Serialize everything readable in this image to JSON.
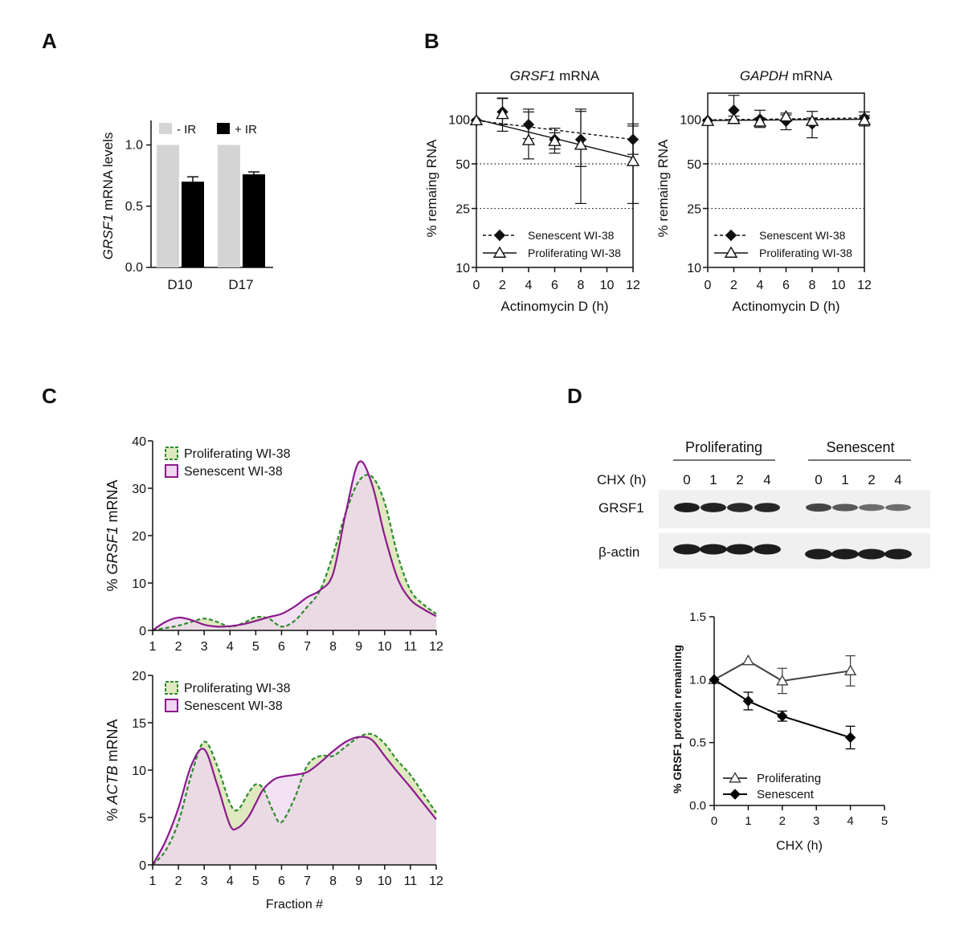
{
  "panels": {
    "A": {
      "letter": "A"
    },
    "B": {
      "letter": "B"
    },
    "C": {
      "letter": "C"
    },
    "D": {
      "letter": "D"
    }
  },
  "chart_data": [
    {
      "id": "A",
      "type": "bar",
      "title": "",
      "ylabel_italic": "GRSF1",
      "ylabel_rest": " mRNA levels",
      "categories": [
        "D10",
        "D17"
      ],
      "ylim": [
        0,
        1.2
      ],
      "yticks": [
        0.0,
        0.5,
        1.0
      ],
      "ytick_labels": [
        "0.0",
        "0.5",
        "1.0"
      ],
      "series": [
        {
          "name": "- IR",
          "color": "#d4d4d4",
          "values": [
            1.0,
            1.0
          ],
          "errors": [
            0,
            0
          ]
        },
        {
          "name": "+ IR",
          "color": "#000000",
          "values": [
            0.7,
            0.76
          ],
          "errors": [
            0.04,
            0.02
          ]
        }
      ],
      "legend_placement": "top"
    },
    {
      "id": "B1",
      "type": "line",
      "title_italic": "GRSF1",
      "title_rest": " mRNA",
      "xlabel": "Actinomycin D (h)",
      "ylabel": "% remaing RNA",
      "yscale": "log",
      "ylim": [
        10,
        150
      ],
      "xlim": [
        0,
        12
      ],
      "xticks": [
        0,
        2,
        4,
        6,
        8,
        10,
        12
      ],
      "yticks": [
        10,
        25,
        50,
        100
      ],
      "reference_lines": [
        25,
        50
      ],
      "series": [
        {
          "name": "Senescent WI-38",
          "marker": "diamond",
          "line": "dashed",
          "x": [
            0,
            2,
            4,
            6,
            8,
            12
          ],
          "y": [
            98,
            112,
            92,
            73,
            73,
            73
          ],
          "err_hi": [
            0,
            27,
            20,
            14,
            40,
            20
          ],
          "err_lo": [
            0,
            20,
            18,
            10,
            25,
            15
          ],
          "fit": [
            [
              0,
              98
            ],
            [
              12,
              73
            ]
          ]
        },
        {
          "name": "Proliferating WI-38",
          "marker": "triangle",
          "line": "solid",
          "x": [
            0,
            2,
            4,
            6,
            8,
            12
          ],
          "y": [
            98,
            108,
            72,
            71,
            67,
            52
          ],
          "err_hi": [
            0,
            30,
            45,
            10,
            50,
            38
          ],
          "err_lo": [
            0,
            25,
            18,
            12,
            40,
            25
          ],
          "fit": [
            [
              0,
              100
            ],
            [
              12,
              55
            ]
          ]
        }
      ],
      "legend_placement": "bottom-left"
    },
    {
      "id": "B2",
      "type": "line",
      "title_italic": "GAPDH",
      "title_rest": " mRNA",
      "xlabel": "Actinomycin D (h)",
      "ylabel": "% remaing RNA",
      "yscale": "log",
      "ylim": [
        10,
        150
      ],
      "xlim": [
        0,
        12
      ],
      "xticks": [
        0,
        2,
        4,
        6,
        8,
        10,
        12
      ],
      "yticks": [
        10,
        25,
        50,
        100
      ],
      "reference_lines": [
        25,
        50
      ],
      "series": [
        {
          "name": "Senescent WI-38",
          "marker": "diamond",
          "line": "dashed",
          "x": [
            0,
            2,
            4,
            6,
            8,
            12
          ],
          "y": [
            98,
            115,
            100,
            97,
            93,
            102
          ],
          "err_hi": [
            0,
            30,
            15,
            10,
            20,
            10
          ],
          "err_lo": [
            0,
            15,
            12,
            12,
            18,
            10
          ],
          "fit": [
            [
              0,
              99
            ],
            [
              12,
              102
            ]
          ]
        },
        {
          "name": "Proliferating WI-38",
          "marker": "triangle",
          "line": "solid",
          "x": [
            0,
            2,
            4,
            6,
            8,
            12
          ],
          "y": [
            97,
            100,
            96,
            104,
            97,
            98
          ],
          "err_hi": [
            0,
            5,
            6,
            6,
            5,
            8
          ],
          "err_lo": [
            0,
            5,
            6,
            6,
            5,
            8
          ],
          "fit": [
            [
              0,
              98
            ],
            [
              12,
              100
            ]
          ]
        }
      ],
      "legend_placement": "bottom-left"
    },
    {
      "id": "C1",
      "type": "area",
      "ylabel_pre": "% ",
      "ylabel_italic": "GRSF1",
      "ylabel_rest": " mRNA",
      "xlim": [
        1,
        12
      ],
      "ylim": [
        0,
        40
      ],
      "xticks": [
        1,
        2,
        3,
        4,
        5,
        6,
        7,
        8,
        9,
        10,
        11,
        12
      ],
      "yticks": [
        0,
        10,
        20,
        30,
        40
      ],
      "series": [
        {
          "name": "Proliferating WI-38",
          "color": "#2e8b2e",
          "fill": "#dfe8bf",
          "line": "dashed",
          "x": [
            1,
            1.5,
            2,
            2.5,
            3,
            3.5,
            4,
            4.5,
            5,
            5.5,
            6,
            6.5,
            7,
            7.5,
            8,
            8.5,
            9,
            9.5,
            10,
            10.5,
            11,
            11.5,
            12
          ],
          "y": [
            0,
            0.5,
            1.0,
            1.8,
            2.5,
            1.8,
            0.8,
            1.5,
            2.8,
            2.5,
            0.8,
            2.0,
            5.0,
            8.5,
            16,
            25,
            31.5,
            32.5,
            27,
            16,
            8.5,
            5.5,
            3.5
          ]
        },
        {
          "name": "Senescent WI-38",
          "color": "#8b1a8b",
          "fill": "#eed6ef",
          "line": "solid",
          "x": [
            1,
            1.5,
            2,
            2.5,
            3,
            3.5,
            4,
            4.5,
            5,
            5.5,
            6,
            6.5,
            7,
            7.5,
            8,
            8.5,
            9,
            9.5,
            10,
            10.5,
            11,
            11.5,
            12
          ],
          "y": [
            0,
            1.8,
            2.7,
            2.2,
            1.2,
            0.8,
            0.9,
            1.3,
            2.0,
            2.8,
            3.5,
            5.0,
            7.0,
            8.5,
            12,
            25,
            35.5,
            31,
            20,
            11,
            6.5,
            4.5,
            3.0
          ]
        }
      ],
      "legend_placement": "top-left"
    },
    {
      "id": "C2",
      "type": "area",
      "xlabel": "Fraction #",
      "ylabel_pre": "% ",
      "ylabel_italic": "ACTB",
      "ylabel_rest": " mRNA",
      "xlim": [
        1,
        12
      ],
      "ylim": [
        0,
        20
      ],
      "xticks": [
        1,
        2,
        3,
        4,
        5,
        6,
        7,
        8,
        9,
        10,
        11,
        12
      ],
      "yticks": [
        0,
        5,
        10,
        15,
        20
      ],
      "series": [
        {
          "name": "Proliferating WI-38",
          "color": "#2e8b2e",
          "fill": "#dfe8bf",
          "line": "dashed",
          "x": [
            1,
            1.5,
            2,
            2.5,
            3,
            3.5,
            4,
            4.3,
            4.7,
            5,
            5.3,
            5.7,
            6,
            6.5,
            7,
            7.5,
            8,
            8.5,
            9,
            9.5,
            10,
            10.5,
            11,
            11.5,
            12
          ],
          "y": [
            0,
            1.5,
            4.5,
            9.5,
            13.0,
            10.5,
            6.5,
            5.8,
            7.5,
            8.5,
            8.0,
            5.5,
            4.5,
            7.0,
            10.5,
            11.5,
            11.5,
            12.5,
            13.5,
            13.8,
            12.8,
            11.0,
            9.5,
            7.5,
            5.5
          ]
        },
        {
          "name": "Senescent WI-38",
          "color": "#8b1a8b",
          "fill": "#eed6ef",
          "line": "solid",
          "x": [
            1,
            1.5,
            2,
            2.5,
            3,
            3.5,
            4,
            4.3,
            4.7,
            5,
            5.3,
            5.7,
            6,
            6.5,
            7,
            7.5,
            8,
            8.5,
            9,
            9.5,
            10,
            10.5,
            11,
            11.5,
            12
          ],
          "y": [
            0,
            2.5,
            6.0,
            10.5,
            12.2,
            8.5,
            4.2,
            3.9,
            5.0,
            6.5,
            8.0,
            9.0,
            9.3,
            9.5,
            9.8,
            10.8,
            12.0,
            13.0,
            13.5,
            13.2,
            11.5,
            9.8,
            8.2,
            6.5,
            4.8
          ]
        }
      ],
      "legend_placement": "top-left"
    },
    {
      "id": "D",
      "type": "line",
      "xlabel": "CHX (h)",
      "ylabel": "% GRSF1 protein remaining",
      "xlim": [
        0,
        5
      ],
      "ylim": [
        0,
        1.5
      ],
      "xticks": [
        0,
        1,
        2,
        3,
        4,
        5
      ],
      "yticks": [
        0.0,
        0.5,
        1.0,
        1.5
      ],
      "ytick_labels": [
        "0.0",
        "0.5",
        "1.0",
        "1.5"
      ],
      "series": [
        {
          "name": "Proliferating",
          "marker": "triangle",
          "color": "#444444",
          "x": [
            0,
            1,
            2,
            4
          ],
          "y": [
            1.0,
            1.15,
            0.99,
            1.07
          ],
          "err": [
            0,
            0,
            0.1,
            0.12
          ]
        },
        {
          "name": "Senescent",
          "marker": "diamond",
          "color": "#000000",
          "x": [
            0,
            1,
            2,
            4
          ],
          "y": [
            1.0,
            0.83,
            0.71,
            0.54
          ],
          "err": [
            0,
            0.07,
            0.04,
            0.09
          ]
        }
      ],
      "legend_placement": "bottom-left"
    }
  ],
  "blot": {
    "group_labels": [
      "Proliferating",
      "Senescent"
    ],
    "chx_label": "CHX (h)",
    "lane_labels": [
      "0",
      "1",
      "2",
      "4",
      "0",
      "1",
      "2",
      "4"
    ],
    "row_labels": [
      "GRSF1",
      "β-actin"
    ],
    "grsf1_band_intensity": [
      1.0,
      0.95,
      0.9,
      0.92,
      0.7,
      0.55,
      0.4,
      0.4
    ],
    "actin_band_intensity": [
      1.0,
      1.0,
      1.0,
      1.0,
      1.0,
      1.0,
      1.0,
      1.0
    ]
  }
}
